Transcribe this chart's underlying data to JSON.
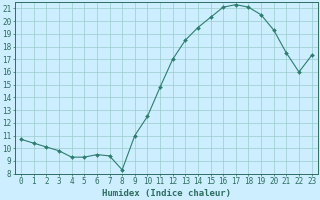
{
  "x": [
    0,
    1,
    2,
    3,
    4,
    5,
    6,
    7,
    8,
    9,
    10,
    11,
    12,
    13,
    14,
    15,
    16,
    17,
    18,
    19,
    20,
    21,
    22,
    23
  ],
  "y": [
    10.7,
    10.4,
    10.1,
    9.8,
    9.3,
    9.3,
    9.5,
    9.4,
    8.3,
    11.0,
    12.5,
    14.8,
    17.0,
    18.5,
    19.5,
    20.3,
    21.1,
    21.3,
    21.1,
    20.5,
    19.3,
    17.5,
    16.0,
    17.3
  ],
  "xlabel": "Humidex (Indice chaleur)",
  "line_color": "#2e7d6e",
  "marker": "D",
  "marker_size": 2,
  "bg_color": "#cceeff",
  "grid_color": "#99cccc",
  "ylim": [
    8,
    21.5
  ],
  "xlim": [
    -0.5,
    23.5
  ],
  "yticks": [
    8,
    9,
    10,
    11,
    12,
    13,
    14,
    15,
    16,
    17,
    18,
    19,
    20,
    21
  ],
  "xticks": [
    0,
    1,
    2,
    3,
    4,
    5,
    6,
    7,
    8,
    9,
    10,
    11,
    12,
    13,
    14,
    15,
    16,
    17,
    18,
    19,
    20,
    21,
    22,
    23
  ],
  "tick_color": "#2e6e5e",
  "tick_fontsize": 5.5,
  "xlabel_fontsize": 6.5,
  "linewidth": 0.8
}
